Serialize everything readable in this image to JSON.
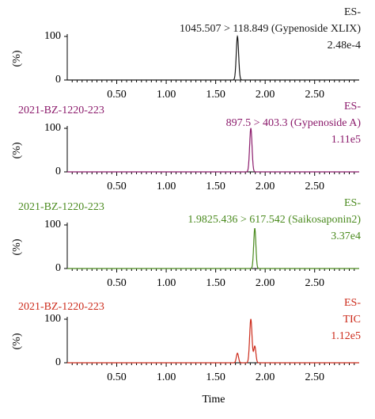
{
  "chart_data": [
    {
      "type": "line",
      "sample": "",
      "mode": "ES-",
      "transition": "1045.507 > 118.849 (Gypenoside XLIX)",
      "intensity": "2.48e-4",
      "color": "#1a1a1a",
      "ylabel": "(%)",
      "xlim": [
        0.0,
        2.95
      ],
      "ylim": [
        0,
        100
      ],
      "yticks": [
        0,
        100
      ],
      "xticks": [
        "0.50",
        "1.00",
        "1.50",
        "2.00",
        "2.50"
      ],
      "peaks": [
        {
          "x": 1.72,
          "y": 100,
          "w": 0.012
        }
      ]
    },
    {
      "type": "line",
      "sample": "2021-BZ-1220-223",
      "mode": "ES-",
      "transition": "897.5 > 403.3 (Gypenoside A)",
      "intensity": "1.11e5",
      "color": "#8b1a6b",
      "ylabel": "(%)",
      "xlim": [
        0.0,
        2.95
      ],
      "ylim": [
        0,
        100
      ],
      "yticks": [
        0,
        100
      ],
      "xticks": [
        "0.50",
        "1.00",
        "1.50",
        "2.00",
        "2.50"
      ],
      "peaks": [
        {
          "x": 1.855,
          "y": 100,
          "w": 0.012
        }
      ]
    },
    {
      "type": "line",
      "sample": "2021-BZ-1220-223",
      "mode": "ES-",
      "transition": "1.9825.436 > 617.542 (Saikosaponin2)",
      "intensity": "3.37e4",
      "color": "#4a8a1e",
      "ylabel": "(%)",
      "xlim": [
        0.0,
        2.95
      ],
      "ylim": [
        0,
        100
      ],
      "yticks": [
        0,
        100
      ],
      "xticks": [
        "0.50",
        "1.00",
        "1.50",
        "2.00",
        "2.50"
      ],
      "peaks": [
        {
          "x": 1.895,
          "y": 92,
          "w": 0.011
        }
      ]
    },
    {
      "type": "line",
      "sample": "2021-BZ-1220-223",
      "mode": "ES-",
      "transition": "TIC",
      "intensity": "1.12e5",
      "color": "#cc2a1a",
      "ylabel": "(%)",
      "xlabel": "Time",
      "xlim": [
        0.0,
        2.95
      ],
      "ylim": [
        0,
        100
      ],
      "yticks": [
        0,
        100
      ],
      "xticks": [
        "0.50",
        "1.00",
        "1.50",
        "2.00",
        "2.50"
      ],
      "peaks": [
        {
          "x": 1.72,
          "y": 22,
          "w": 0.011
        },
        {
          "x": 1.855,
          "y": 100,
          "w": 0.012
        },
        {
          "x": 1.895,
          "y": 38,
          "w": 0.011
        }
      ]
    }
  ]
}
